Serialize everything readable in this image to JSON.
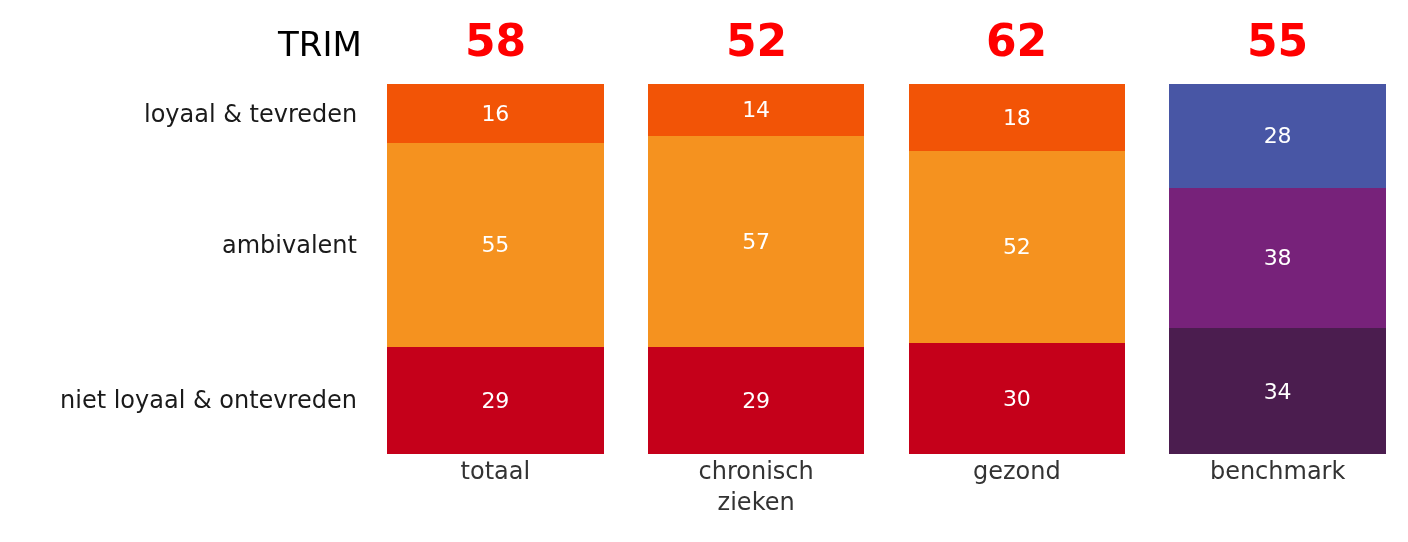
{
  "chart_data": {
    "type": "bar",
    "stacked": true,
    "categories": [
      "totaal",
      "chronisch\nzieken",
      "gezond",
      "benchmark"
    ],
    "series": [
      {
        "name": "niet loyaal & ontevreden",
        "colors": [
          "#c5001a",
          "#c5001a",
          "#c5001a",
          "#4b1d4f"
        ],
        "values": [
          29,
          29,
          30,
          34
        ]
      },
      {
        "name": "ambivalent",
        "colors": [
          "#f5921f",
          "#f5921f",
          "#f5921f",
          "#77227a"
        ],
        "values": [
          55,
          57,
          52,
          38
        ]
      },
      {
        "name": "loyaal & tevreden",
        "colors": [
          "#f25406",
          "#f25406",
          "#f25406",
          "#4856a5"
        ],
        "values": [
          16,
          14,
          18,
          28
        ]
      }
    ],
    "ylim": [
      0,
      100
    ],
    "tick_labels": "x",
    "data_labels": true,
    "legend": false,
    "grid": false,
    "annotations": [
      "TRIM",
      "58",
      "52",
      "62",
      "55"
    ]
  }
}
